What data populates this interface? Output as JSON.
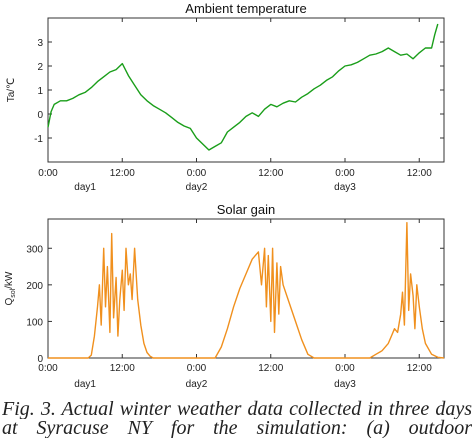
{
  "chart_data": [
    {
      "type": "line",
      "title": "Ambient temperature",
      "xlabel": "",
      "ylabel": "Ta/℃",
      "color": "#1a9e1a",
      "xlim": [
        0,
        64
      ],
      "ylim": [
        -2,
        4
      ],
      "xticks": [
        0,
        12,
        24,
        36,
        48,
        60
      ],
      "xtick_labels": [
        "0:00",
        "12:00",
        "0:00",
        "12:00",
        "0:00",
        "12:00"
      ],
      "yticks": [
        -1,
        0,
        1,
        2,
        3
      ],
      "day_labels": [
        {
          "x": 6,
          "label": "day1"
        },
        {
          "x": 24,
          "label": "day2"
        },
        {
          "x": 48,
          "label": "day3"
        }
      ],
      "series": [
        {
          "x": [
            0,
            0.5,
            1,
            2,
            3,
            4,
            5,
            6,
            7,
            8,
            9,
            10,
            11,
            12,
            13,
            14,
            15,
            16,
            17,
            18,
            19,
            20,
            21,
            22,
            23,
            24,
            25,
            26,
            27,
            28,
            29,
            30,
            31,
            32,
            33,
            34,
            35,
            36,
            37,
            38,
            39,
            40,
            41,
            42,
            43,
            44,
            45,
            46,
            47,
            48,
            49,
            50,
            51,
            52,
            53,
            54,
            55,
            56,
            57,
            58,
            59,
            60,
            61,
            62,
            62.5,
            63
          ],
          "values": [
            -0.55,
            0.1,
            0.4,
            0.55,
            0.55,
            0.65,
            0.8,
            0.9,
            1.1,
            1.35,
            1.55,
            1.75,
            1.85,
            2.1,
            1.6,
            1.2,
            0.8,
            0.55,
            0.35,
            0.2,
            0.05,
            -0.15,
            -0.35,
            -0.5,
            -0.6,
            -1.0,
            -1.25,
            -1.5,
            -1.35,
            -1.2,
            -0.75,
            -0.55,
            -0.35,
            -0.1,
            0.05,
            -0.1,
            0.2,
            0.4,
            0.3,
            0.45,
            0.55,
            0.5,
            0.7,
            0.85,
            1.05,
            1.2,
            1.4,
            1.55,
            1.8,
            2.0,
            2.05,
            2.15,
            2.3,
            2.45,
            2.5,
            2.6,
            2.75,
            2.6,
            2.45,
            2.5,
            2.3,
            2.55,
            2.75,
            2.75,
            3.3,
            3.75
          ]
        }
      ]
    },
    {
      "type": "line",
      "title": "Solar gain",
      "xlabel": "",
      "ylabel": "Q_sol/kW",
      "color": "#f0901e",
      "xlim": [
        0,
        64
      ],
      "ylim": [
        0,
        380
      ],
      "xticks": [
        0,
        12,
        24,
        36,
        48,
        60
      ],
      "xtick_labels": [
        "0:00",
        "12:00",
        "0:00",
        "12:00",
        "0:00",
        "12:00"
      ],
      "yticks": [
        0,
        100,
        200,
        300
      ],
      "day_labels": [
        {
          "x": 6,
          "label": "day1"
        },
        {
          "x": 24,
          "label": "day2"
        },
        {
          "x": 48,
          "label": "day3"
        }
      ],
      "series": [
        {
          "x": [
            0,
            6.5,
            7,
            7.5,
            8,
            8.3,
            8.6,
            9,
            9.3,
            9.6,
            10,
            10.3,
            10.6,
            11,
            11.3,
            11.6,
            12,
            12.3,
            12.6,
            13,
            13.3,
            13.6,
            14,
            14.5,
            15,
            15.5,
            16,
            16.5,
            17,
            27,
            28,
            29,
            30,
            31,
            32,
            33,
            34,
            34.5,
            35,
            35.3,
            35.6,
            36,
            36.3,
            36.6,
            37,
            37.3,
            37.6,
            38,
            39,
            40,
            41,
            42,
            43,
            52,
            53,
            54,
            55,
            55.5,
            56,
            56.5,
            57,
            57.3,
            57.6,
            58,
            58.3,
            58.6,
            59,
            59.3,
            59.6,
            60,
            60.5,
            61,
            62,
            63,
            64
          ],
          "values": [
            0,
            0,
            8,
            60,
            140,
            200,
            90,
            300,
            140,
            250,
            70,
            340,
            110,
            220,
            60,
            160,
            240,
            130,
            300,
            200,
            230,
            160,
            300,
            160,
            90,
            40,
            15,
            5,
            0,
            0,
            30,
            80,
            140,
            190,
            230,
            270,
            290,
            200,
            300,
            140,
            280,
            100,
            300,
            70,
            260,
            120,
            250,
            200,
            150,
            100,
            50,
            10,
            0,
            0,
            10,
            20,
            40,
            60,
            80,
            70,
            120,
            180,
            90,
            370,
            130,
            230,
            170,
            80,
            200,
            140,
            80,
            40,
            10,
            2,
            0
          ]
        }
      ]
    }
  ],
  "caption": {
    "line1": "Fig. 3. Actual winter weather data collected in three days",
    "line2": "at Syracuse NY for the simulation: (a) outdoor"
  }
}
